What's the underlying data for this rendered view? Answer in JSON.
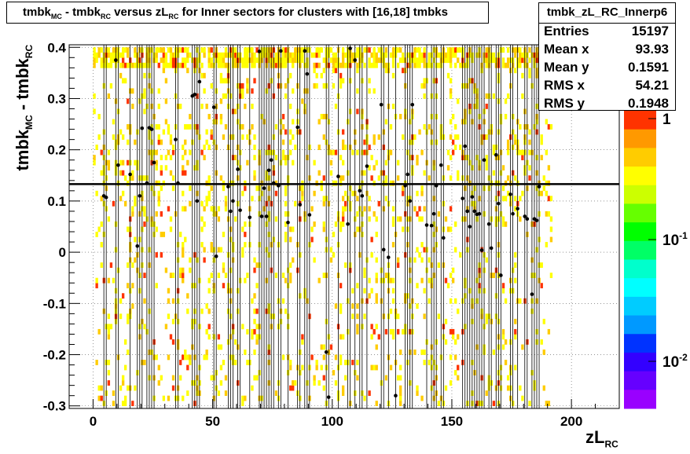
{
  "title": {
    "parts": [
      "tmbk",
      "MC",
      " - tmbk",
      "RC",
      " versus zL",
      "RC",
      " for Inner sectors for clusters with [16,18] tmbks"
    ]
  },
  "stats": {
    "name": "tmbk_zL_RC_Innerp6",
    "rows": [
      {
        "key": "Entries",
        "value": "15197"
      },
      {
        "key": "Mean x",
        "value": "93.93"
      },
      {
        "key": "Mean y",
        "value": "0.1591"
      },
      {
        "key": "RMS x",
        "value": "54.21"
      },
      {
        "key": "RMS y",
        "value": "0.1948"
      }
    ]
  },
  "chart_data": {
    "type": "heatmap",
    "xlabel": "zL",
    "xlabel_sub": "RC",
    "ylabel": "tmbk",
    "ylabel_sub1": "MC",
    "ylabel_mid": " - tmbk",
    "ylabel_sub2": "RC",
    "xlim": [
      -10,
      220
    ],
    "ylim": [
      -0.305,
      0.405
    ],
    "xticks": [
      0,
      50,
      100,
      150,
      200
    ],
    "xtick_labels": [
      "0",
      "50",
      "100",
      "150",
      "200"
    ],
    "yticks": [
      -0.3,
      -0.2,
      -0.1,
      0,
      0.1,
      0.2,
      0.3,
      0.4
    ],
    "ytick_labels": [
      "-0.3",
      "-0.2",
      "-0.1",
      "0",
      "0.1",
      "0.2",
      "0.3",
      "0.4"
    ],
    "grid": true,
    "log_z": true,
    "z_ticks": [
      {
        "base": "1",
        "exp": ""
      },
      {
        "base": "10",
        "exp": "-1"
      },
      {
        "base": "10",
        "exp": "-2"
      }
    ],
    "fit_line_y": 0.133,
    "profile_points": [
      {
        "x": 4.5,
        "y": 0.11
      },
      {
        "x": 5.5,
        "y": 0.107
      },
      {
        "x": 9.5,
        "y": 0.375
      },
      {
        "x": 10.5,
        "y": 0.17
      },
      {
        "x": 15.5,
        "y": 0.152
      },
      {
        "x": 18.5,
        "y": 0.012
      },
      {
        "x": 19.5,
        "y": 0.11
      },
      {
        "x": 20.5,
        "y": 0.242
      },
      {
        "x": 22.5,
        "y": 0.135
      },
      {
        "x": 23.5,
        "y": 0.243
      },
      {
        "x": 24.5,
        "y": 0.24
      },
      {
        "x": 25.5,
        "y": 0.175
      },
      {
        "x": 34.5,
        "y": 0.22
      },
      {
        "x": 35.5,
        "y": 0.135
      },
      {
        "x": 41.5,
        "y": 0.305
      },
      {
        "x": 42.5,
        "y": 0.308
      },
      {
        "x": 43.5,
        "y": 0.1
      },
      {
        "x": 44.5,
        "y": 0.333
      },
      {
        "x": 50.5,
        "y": 0.283
      },
      {
        "x": 51.5,
        "y": -0.008
      },
      {
        "x": 56.5,
        "y": 0.128
      },
      {
        "x": 57.5,
        "y": 0.08
      },
      {
        "x": 58.5,
        "y": 0.1
      },
      {
        "x": 60.5,
        "y": 0.162
      },
      {
        "x": 61.5,
        "y": 0.082
      },
      {
        "x": 65.5,
        "y": 0.068
      },
      {
        "x": 69.5,
        "y": 0.392
      },
      {
        "x": 70.5,
        "y": 0.07
      },
      {
        "x": 71.5,
        "y": 0.125
      },
      {
        "x": 72.5,
        "y": 0.07
      },
      {
        "x": 73.5,
        "y": 0.16
      },
      {
        "x": 74.5,
        "y": 0.18
      },
      {
        "x": 75.5,
        "y": 0.135
      },
      {
        "x": 77.5,
        "y": 0.13
      },
      {
        "x": 78.5,
        "y": 0.393
      },
      {
        "x": 81.5,
        "y": 0.058
      },
      {
        "x": 85.5,
        "y": 0.244
      },
      {
        "x": 86.5,
        "y": 0.093
      },
      {
        "x": 88.5,
        "y": 0.393
      },
      {
        "x": 89.5,
        "y": 0.348
      },
      {
        "x": 90.5,
        "y": 0.073
      },
      {
        "x": 97.5,
        "y": -0.195
      },
      {
        "x": 98.5,
        "y": -0.283
      },
      {
        "x": 102.5,
        "y": 0.148
      },
      {
        "x": 106.5,
        "y": 0.055
      },
      {
        "x": 107.5,
        "y": 0.398
      },
      {
        "x": 109.5,
        "y": 0.375
      },
      {
        "x": 111.5,
        "y": 0.12
      },
      {
        "x": 112.5,
        "y": 0.11
      },
      {
        "x": 114.5,
        "y": 0.168
      },
      {
        "x": 120.5,
        "y": 0.288
      },
      {
        "x": 121.5,
        "y": 0.005
      },
      {
        "x": 123.5,
        "y": -0.01
      },
      {
        "x": 126.5,
        "y": -0.28
      },
      {
        "x": 130.5,
        "y": 0.13
      },
      {
        "x": 131.5,
        "y": 0.152
      },
      {
        "x": 132.5,
        "y": 0.1
      },
      {
        "x": 133.5,
        "y": 0.288
      },
      {
        "x": 139.5,
        "y": 0.053
      },
      {
        "x": 141.5,
        "y": 0.052
      },
      {
        "x": 142.5,
        "y": 0.075
      },
      {
        "x": 143.5,
        "y": 0.13
      },
      {
        "x": 145.5,
        "y": 0.17
      },
      {
        "x": 146.5,
        "y": 0.028
      },
      {
        "x": 154.5,
        "y": 0.105
      },
      {
        "x": 155.5,
        "y": 0.207
      },
      {
        "x": 156.5,
        "y": 0.08
      },
      {
        "x": 157.5,
        "y": 0.05
      },
      {
        "x": 158.5,
        "y": 0.108
      },
      {
        "x": 159.5,
        "y": 0.08
      },
      {
        "x": 160.5,
        "y": 0.074
      },
      {
        "x": 161.5,
        "y": 0.075
      },
      {
        "x": 162.5,
        "y": 0.004
      },
      {
        "x": 163.5,
        "y": 0.18
      },
      {
        "x": 165.5,
        "y": 0.055
      },
      {
        "x": 166.5,
        "y": 0.008
      },
      {
        "x": 168.5,
        "y": 0.19
      },
      {
        "x": 169.5,
        "y": 0.095
      },
      {
        "x": 170.5,
        "y": -0.045
      },
      {
        "x": 174.5,
        "y": 0.113
      },
      {
        "x": 175.5,
        "y": 0.075
      },
      {
        "x": 177.5,
        "y": 0.085
      },
      {
        "x": 180.5,
        "y": 0.07
      },
      {
        "x": 181.5,
        "y": 0.065
      },
      {
        "x": 183.5,
        "y": -0.082
      },
      {
        "x": 184.5,
        "y": 0.065
      },
      {
        "x": 185.5,
        "y": 0.062
      },
      {
        "x": 186.5,
        "y": 0.128
      }
    ],
    "heatmap_density": {
      "x_range": [
        0,
        192
      ],
      "y_range": [
        -0.3,
        0.4
      ],
      "bin_x": 1,
      "bin_y": 0.01,
      "cell_colors": {
        "low": "#ffff00",
        "mid": "#ffcc00",
        "high": "#ff3300"
      }
    },
    "palette": [
      "#ff3300",
      "#ff9900",
      "#ffcc00",
      "#ffff00",
      "#ccff00",
      "#66ff00",
      "#00ff00",
      "#00ff66",
      "#00ffcc",
      "#00ffff",
      "#00ccff",
      "#0099ff",
      "#0033ff",
      "#3300ff",
      "#6600ff",
      "#9900ff"
    ]
  }
}
